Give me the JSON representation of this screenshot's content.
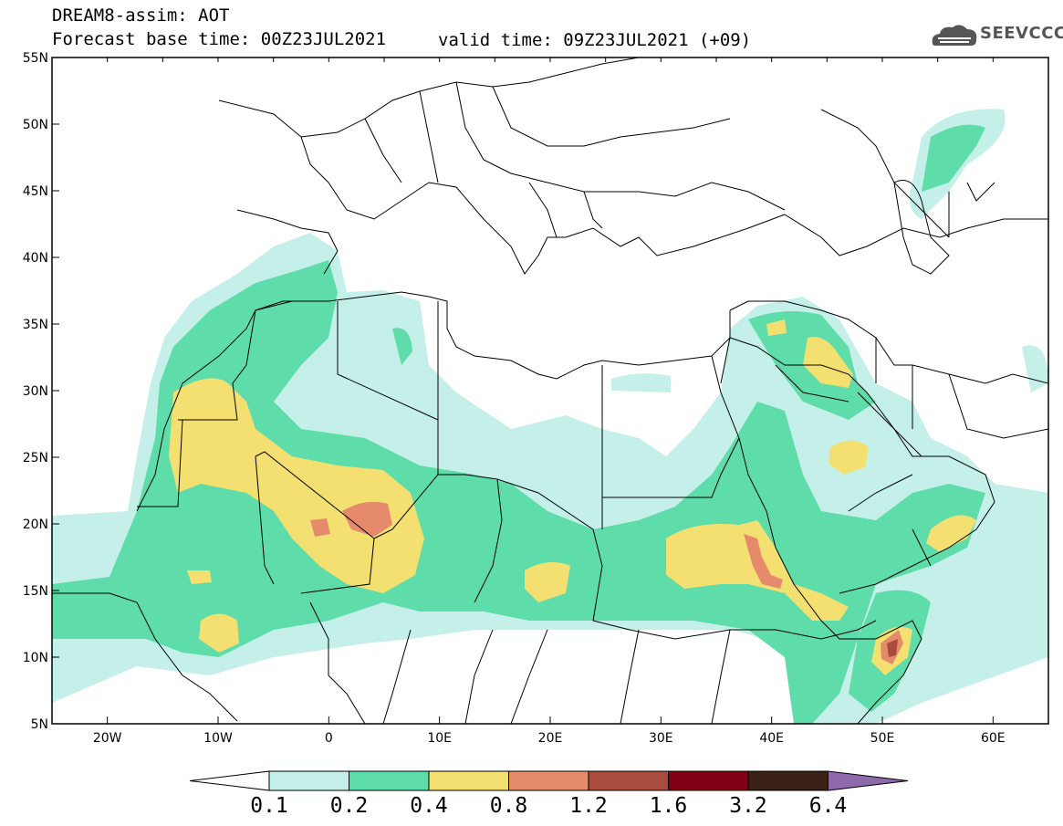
{
  "header": {
    "title": "DREAM8-assim: AOT",
    "base_time": "Forecast base time: 00Z23JUL2021",
    "valid_time": "valid time: 09Z23JUL2021 (+09)"
  },
  "logo": {
    "text": "SEEVCCC"
  },
  "map": {
    "lon_range": [
      -25,
      65
    ],
    "lat_range": [
      5,
      55
    ],
    "lon_ticks": [
      "20W",
      "10W",
      "0",
      "10E",
      "20E",
      "30E",
      "40E",
      "50E",
      "60E"
    ],
    "lat_ticks": [
      "55N",
      "50N",
      "45N",
      "40N",
      "35N",
      "30N",
      "25N",
      "20N",
      "15N",
      "10N",
      "5N"
    ]
  },
  "colorbar": {
    "labels": [
      "0.1",
      "0.2",
      "0.4",
      "0.8",
      "1.2",
      "1.6",
      "3.2",
      "6.4"
    ],
    "colors": [
      "#ffffff",
      "#c5f0ea",
      "#5edcaa",
      "#f3e070",
      "#e58b6c",
      "#a94c3e",
      "#820015",
      "#3a2015",
      "#8e6aac"
    ]
  },
  "colors": {
    "level_0_1": "#c5f0ea",
    "level_0_2": "#5edcaa",
    "level_0_4": "#f3e070",
    "level_0_8": "#e58b6c",
    "level_1_2": "#a94c3e"
  }
}
